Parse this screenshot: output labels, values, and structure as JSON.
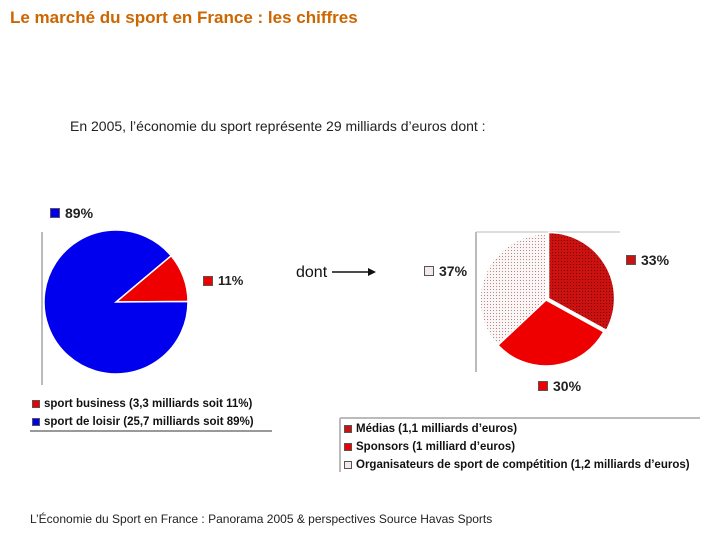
{
  "title": "Le marché du sport en France : les chiffres",
  "subtitle": "En 2005, l’économie du sport représente 29 milliards d’euros dont :",
  "connector_label": "dont",
  "source": "L’Économie du Sport en France : Panorama 2005 & perspectives Source Havas Sports",
  "colors": {
    "blue": "#0000ee",
    "red": "#ee0000",
    "dark_red": "#cc1111",
    "light_pattern": "#f2eaea",
    "title": "#cc6600"
  },
  "chart_data": [
    {
      "type": "pie",
      "title": "",
      "slices": [
        {
          "label": "sport business (3,3 milliards soit 11%)",
          "value": 11,
          "display": "11%",
          "color": "#ee0000"
        },
        {
          "label": "sport de loisir (25,7 milliards soit 89%)",
          "value": 89,
          "display": "89%",
          "color": "#0000ee"
        }
      ]
    },
    {
      "type": "pie",
      "title": "",
      "slices": [
        {
          "label": "Médias (1,1 milliards d’euros)",
          "value": 33,
          "display": "33%",
          "color": "#cc1111"
        },
        {
          "label": "Sponsors (1 milliard d’euros)",
          "value": 30,
          "display": "30%",
          "color": "#ee0000"
        },
        {
          "label": "Organisateurs de sport de compétition (1,2 milliards d’euros)",
          "value": 37,
          "display": "37%",
          "color": "#f2eaea"
        }
      ]
    }
  ]
}
